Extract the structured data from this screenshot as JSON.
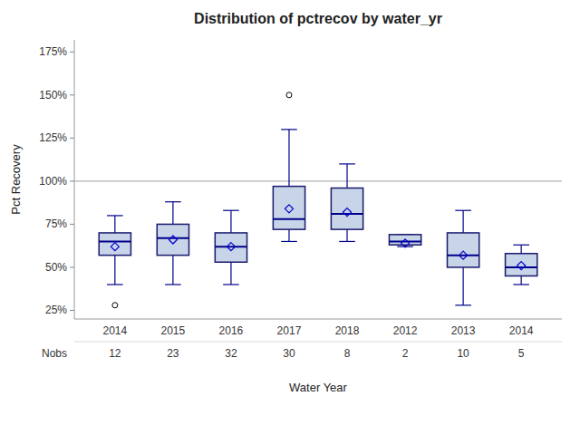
{
  "chart_data": {
    "type": "box",
    "title": "Distribution of pctrecov by water_yr",
    "xlabel": "Water Year",
    "ylabel": "Pct Recovery",
    "categories": [
      "2014",
      "2015",
      "2016",
      "2017",
      "2018",
      "2012",
      "2013",
      "2014"
    ],
    "nobs_label": "Nobs",
    "nobs": [
      12,
      23,
      32,
      30,
      8,
      2,
      10,
      5
    ],
    "boxes": [
      {
        "whislo": 40,
        "q1": 57,
        "med": 65,
        "q3": 70,
        "whishi": 80,
        "fliers": [
          28
        ],
        "mean": 62
      },
      {
        "whislo": 40,
        "q1": 57,
        "med": 67,
        "q3": 75,
        "whishi": 88,
        "fliers": [],
        "mean": 66
      },
      {
        "whislo": 40,
        "q1": 53,
        "med": 62,
        "q3": 70,
        "whishi": 83,
        "fliers": [],
        "mean": 62
      },
      {
        "whislo": 65,
        "q1": 72,
        "med": 78,
        "q3": 97,
        "whishi": 130,
        "fliers": [
          150
        ],
        "mean": 84
      },
      {
        "whislo": 65,
        "q1": 72,
        "med": 81,
        "q3": 96,
        "whishi": 110,
        "fliers": [],
        "mean": 82
      },
      {
        "whislo": 62,
        "q1": 63,
        "med": 65,
        "q3": 69,
        "whishi": 69,
        "fliers": [],
        "mean": 64
      },
      {
        "whislo": 28,
        "q1": 50,
        "med": 57,
        "q3": 70,
        "whishi": 83,
        "fliers": [],
        "mean": 57
      },
      {
        "whislo": 40,
        "q1": 45,
        "med": 50,
        "q3": 58,
        "whishi": 63,
        "fliers": [],
        "mean": 51
      }
    ],
    "hline": 100,
    "color": "#c8d4e8",
    "ylim": [
      20,
      182
    ],
    "yticks": [
      {
        "value": 25,
        "label": "25%"
      },
      {
        "value": 50,
        "label": "50%"
      },
      {
        "value": 75,
        "label": "75%"
      },
      {
        "value": 100,
        "label": "100%"
      },
      {
        "value": 125,
        "label": "125%"
      },
      {
        "value": 150,
        "label": "150%"
      },
      {
        "value": 175,
        "label": "175%"
      }
    ],
    "grid": false
  }
}
